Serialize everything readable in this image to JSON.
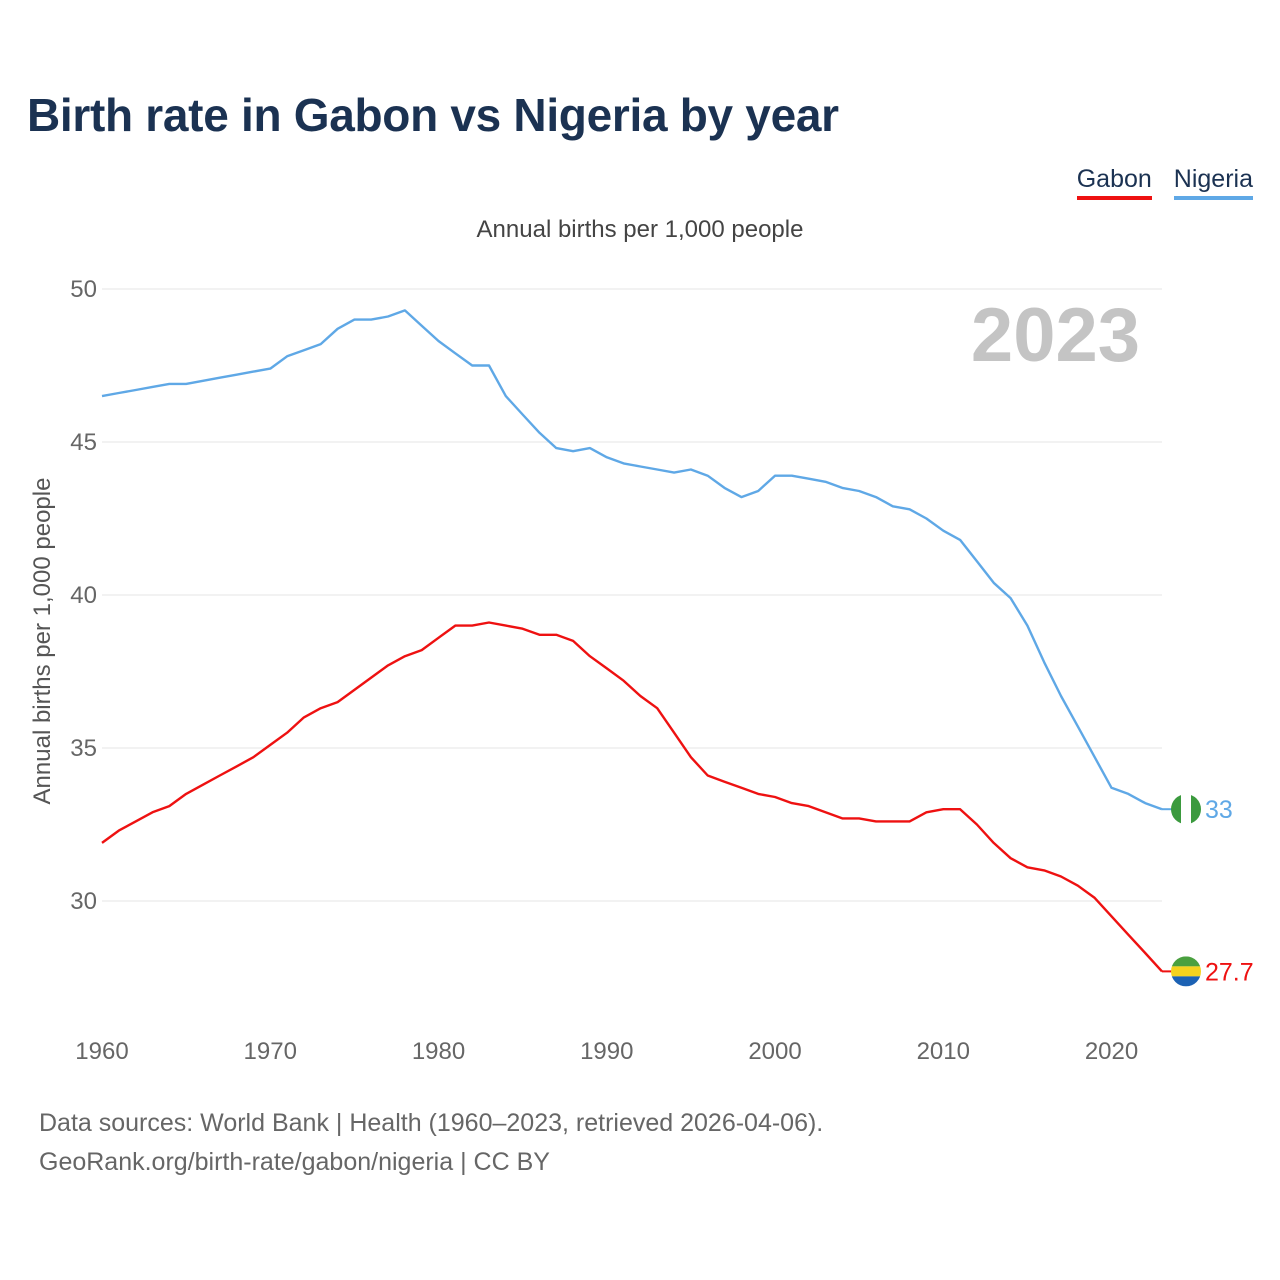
{
  "title": "Birth rate in Gabon vs Nigeria by year",
  "subtitle": "Annual births per 1,000 people",
  "legend": [
    {
      "label": "Gabon",
      "color": "#ee1111"
    },
    {
      "label": "Nigeria",
      "color": "#5fa8e6"
    }
  ],
  "footer": {
    "line1": "Data sources: World Bank | Health (1960–2023, retrieved 2026-04-06).",
    "line2": "GeoRank.org/birth-rate/gabon/nigeria | CC BY"
  },
  "chart_data": {
    "type": "line",
    "title": "Birth rate in Gabon vs Nigeria by year",
    "ylabel": "Annual births per 1,000 people",
    "xlabel": "",
    "year_label": "2023",
    "xlim": [
      1960,
      2023
    ],
    "ylim": [
      26,
      50
    ],
    "x_ticks": [
      1960,
      1970,
      1980,
      1990,
      2000,
      2010,
      2020
    ],
    "y_ticks": [
      30,
      35,
      40,
      45,
      50
    ],
    "grid": true,
    "x": [
      1960,
      1961,
      1962,
      1963,
      1964,
      1965,
      1966,
      1967,
      1968,
      1969,
      1970,
      1971,
      1972,
      1973,
      1974,
      1975,
      1976,
      1977,
      1978,
      1979,
      1980,
      1981,
      1982,
      1983,
      1984,
      1985,
      1986,
      1987,
      1988,
      1989,
      1990,
      1991,
      1992,
      1993,
      1994,
      1995,
      1996,
      1997,
      1998,
      1999,
      2000,
      2001,
      2002,
      2003,
      2004,
      2005,
      2006,
      2007,
      2008,
      2009,
      2010,
      2011,
      2012,
      2013,
      2014,
      2015,
      2016,
      2017,
      2018,
      2019,
      2020,
      2021,
      2022,
      2023
    ],
    "series": [
      {
        "name": "Gabon",
        "color": "#ee1111",
        "end_label": "27.7",
        "values": [
          31.9,
          32.3,
          32.6,
          32.9,
          33.1,
          33.5,
          33.8,
          34.1,
          34.4,
          34.7,
          35.1,
          35.5,
          36.0,
          36.3,
          36.5,
          36.9,
          37.3,
          37.7,
          38.0,
          38.2,
          38.6,
          39.0,
          39.0,
          39.1,
          39.0,
          38.9,
          38.7,
          38.7,
          38.5,
          38.0,
          37.6,
          37.2,
          36.7,
          36.3,
          35.5,
          34.7,
          34.1,
          33.9,
          33.7,
          33.5,
          33.4,
          33.2,
          33.1,
          32.9,
          32.7,
          32.7,
          32.6,
          32.6,
          32.6,
          32.9,
          33.0,
          33.0,
          32.5,
          31.9,
          31.4,
          31.1,
          31.0,
          30.8,
          30.5,
          30.1,
          29.5,
          28.9,
          28.3,
          27.7
        ]
      },
      {
        "name": "Nigeria",
        "color": "#5fa8e6",
        "end_label": "33",
        "values": [
          46.5,
          46.6,
          46.7,
          46.8,
          46.9,
          46.9,
          47.0,
          47.1,
          47.2,
          47.3,
          47.4,
          47.8,
          48.0,
          48.2,
          48.7,
          49.0,
          49.0,
          49.1,
          49.3,
          48.8,
          48.3,
          47.9,
          47.5,
          47.5,
          46.5,
          45.9,
          45.3,
          44.8,
          44.7,
          44.8,
          44.5,
          44.3,
          44.2,
          44.1,
          44.0,
          44.1,
          43.9,
          43.5,
          43.2,
          43.4,
          43.9,
          43.9,
          43.8,
          43.7,
          43.5,
          43.4,
          43.2,
          42.9,
          42.8,
          42.5,
          42.1,
          41.8,
          41.1,
          40.4,
          39.9,
          39.0,
          37.8,
          36.7,
          35.7,
          34.7,
          33.7,
          33.5,
          33.2,
          33.0
        ]
      }
    ]
  }
}
